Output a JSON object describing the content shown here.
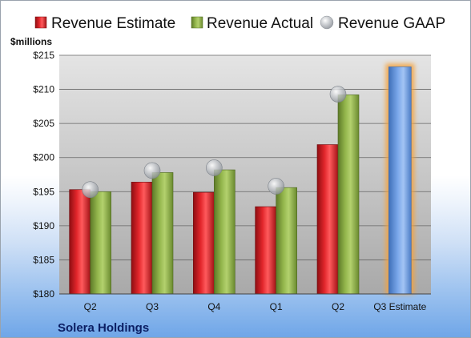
{
  "chart_data": {
    "type": "bar",
    "categories": [
      "Q2",
      "Q3",
      "Q4",
      "Q1",
      "Q2",
      "Q3 Estimate"
    ],
    "series": [
      {
        "name": "Revenue Estimate",
        "values": [
          195.3,
          196.4,
          194.9,
          192.8,
          201.9,
          null
        ],
        "color": "#d21f24"
      },
      {
        "name": "Revenue Actual",
        "values": [
          195.0,
          197.8,
          198.2,
          195.6,
          209.2,
          null
        ],
        "color": "#8fb04a"
      },
      {
        "name": "Revenue GAAP",
        "values": [
          195.3,
          198.1,
          198.5,
          195.8,
          209.3,
          null
        ],
        "color": "#b8bcc2"
      }
    ],
    "estimate_bar": {
      "category": "Q3 Estimate",
      "value": 213.3,
      "color": "#6f9fe0",
      "glow": "#f5a23a"
    },
    "ylabel": "$millions",
    "ylim": [
      180,
      215
    ],
    "yticks": [
      "$180",
      "$185",
      "$190",
      "$195",
      "$200",
      "$205",
      "$210",
      "$215"
    ],
    "ytick_values": [
      180,
      185,
      190,
      195,
      200,
      205,
      210,
      215
    ],
    "grid": true,
    "legend_position": "top",
    "footer": "Solera Holdings"
  }
}
